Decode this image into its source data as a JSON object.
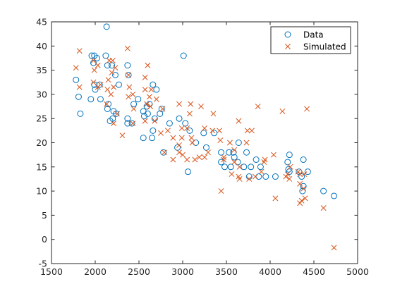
{
  "chart_data": {
    "type": "scatter",
    "title": "",
    "xlabel": "",
    "ylabel": "",
    "xlim": [
      1500,
      5000
    ],
    "ylim": [
      -5,
      45
    ],
    "xticks": [
      1500,
      2000,
      2500,
      3000,
      3500,
      4000,
      4500,
      5000
    ],
    "yticks": [
      -5,
      0,
      5,
      10,
      15,
      20,
      25,
      30,
      35,
      40,
      45
    ],
    "grid": false,
    "legend_position": "top-right",
    "series": [
      {
        "name": "Data",
        "marker": "circle",
        "color": "#0072BD",
        "points": [
          [
            2130,
            44
          ],
          [
            1960,
            38
          ],
          [
            1990,
            38
          ],
          [
            2020,
            37.5
          ],
          [
            2120,
            38
          ],
          [
            3010,
            38
          ],
          [
            1980,
            36.5
          ],
          [
            2140,
            36
          ],
          [
            2190,
            36
          ],
          [
            2370,
            36
          ],
          [
            2050,
            32
          ],
          [
            1990,
            32
          ],
          [
            1780,
            33
          ],
          [
            2000,
            31
          ],
          [
            2380,
            34
          ],
          [
            2230,
            34
          ],
          [
            2660,
            32
          ],
          [
            2700,
            31
          ],
          [
            1810,
            29.5
          ],
          [
            1950,
            29
          ],
          [
            2060,
            29
          ],
          [
            2270,
            32
          ],
          [
            2490,
            29
          ],
          [
            2440,
            28
          ],
          [
            2150,
            28
          ],
          [
            2620,
            28
          ],
          [
            2550,
            26.5
          ],
          [
            2590,
            27.5
          ],
          [
            2140,
            27
          ],
          [
            2210,
            26.5
          ],
          [
            2240,
            26
          ],
          [
            2760,
            27
          ],
          [
            2740,
            26
          ],
          [
            1830,
            26
          ],
          [
            2200,
            25
          ],
          [
            2370,
            25
          ],
          [
            2560,
            25.5
          ],
          [
            2600,
            26
          ],
          [
            2960,
            25
          ],
          [
            2680,
            25
          ],
          [
            2420,
            24
          ],
          [
            2170,
            24.5
          ],
          [
            3030,
            24
          ],
          [
            2850,
            24
          ],
          [
            2370,
            24
          ],
          [
            3360,
            22
          ],
          [
            2660,
            22.5
          ],
          [
            3080,
            22.5
          ],
          [
            3150,
            20
          ],
          [
            3240,
            22
          ],
          [
            3270,
            19
          ],
          [
            2550,
            21
          ],
          [
            2650,
            21
          ],
          [
            2940,
            19
          ],
          [
            2780,
            18
          ],
          [
            3440,
            18
          ],
          [
            3530,
            18
          ],
          [
            3580,
            18
          ],
          [
            3640,
            20
          ],
          [
            3730,
            18
          ],
          [
            3590,
            17
          ],
          [
            3630,
            16
          ],
          [
            3440,
            16
          ],
          [
            3060,
            14
          ],
          [
            3480,
            15
          ],
          [
            3550,
            15
          ],
          [
            3700,
            15
          ],
          [
            3780,
            15
          ],
          [
            3840,
            16.5
          ],
          [
            3890,
            15
          ],
          [
            4200,
            16
          ],
          [
            4220,
            17.5
          ],
          [
            4380,
            16.5
          ],
          [
            4210,
            14.5
          ],
          [
            4330,
            14
          ],
          [
            4430,
            14
          ],
          [
            3760,
            13
          ],
          [
            3870,
            13
          ],
          [
            3950,
            13
          ],
          [
            4060,
            13
          ],
          [
            4360,
            13
          ],
          [
            4380,
            11
          ],
          [
            4370,
            10
          ],
          [
            4610,
            10
          ],
          [
            4730,
            9
          ],
          [
            4220,
            14
          ]
        ]
      },
      {
        "name": "Simulated",
        "marker": "cross",
        "color": "#D95319",
        "points": [
          [
            1820,
            39
          ],
          [
            2370,
            39.5
          ],
          [
            1980,
            37
          ],
          [
            2030,
            36
          ],
          [
            2160,
            37
          ],
          [
            2200,
            37
          ],
          [
            2600,
            36
          ],
          [
            1780,
            35.5
          ],
          [
            1990,
            35
          ],
          [
            2190,
            34.5
          ],
          [
            2380,
            34
          ],
          [
            2150,
            33
          ],
          [
            2570,
            33.5
          ],
          [
            2230,
            35.5
          ],
          [
            1980,
            32.5
          ],
          [
            2030,
            31.5
          ],
          [
            1820,
            31.5
          ],
          [
            2060,
            32
          ],
          [
            2140,
            31
          ],
          [
            2180,
            30
          ],
          [
            2210,
            31.5
          ],
          [
            2390,
            31.5
          ],
          [
            2570,
            31
          ],
          [
            2640,
            31
          ],
          [
            2430,
            30
          ],
          [
            2380,
            29.5
          ],
          [
            2620,
            29.5
          ],
          [
            2700,
            29
          ],
          [
            2590,
            28
          ],
          [
            2130,
            28
          ],
          [
            2440,
            27
          ],
          [
            2630,
            27.5
          ],
          [
            2770,
            27
          ],
          [
            2960,
            28
          ],
          [
            3090,
            28
          ],
          [
            3210,
            27.5
          ],
          [
            3350,
            26
          ],
          [
            3080,
            26
          ],
          [
            2250,
            26
          ],
          [
            2210,
            24
          ],
          [
            2430,
            24
          ],
          [
            2570,
            24.5
          ],
          [
            2680,
            24.5
          ],
          [
            2990,
            23
          ],
          [
            3050,
            23
          ],
          [
            2830,
            22.5
          ],
          [
            2990,
            21
          ],
          [
            3100,
            21
          ],
          [
            3250,
            23
          ],
          [
            3340,
            22.5
          ],
          [
            3420,
            22.5
          ],
          [
            2750,
            22
          ],
          [
            2890,
            21
          ],
          [
            2310,
            21.5
          ],
          [
            3430,
            20.5
          ],
          [
            3540,
            20
          ],
          [
            3470,
            17
          ],
          [
            3590,
            18.5
          ],
          [
            3640,
            24.5
          ],
          [
            3740,
            22.5
          ],
          [
            3790,
            22.5
          ],
          [
            3730,
            20
          ],
          [
            3860,
            27.5
          ],
          [
            4140,
            26.5
          ],
          [
            4420,
            27
          ],
          [
            2960,
            19.5
          ],
          [
            3110,
            20
          ],
          [
            3190,
            17
          ],
          [
            3290,
            18
          ],
          [
            2790,
            18
          ],
          [
            2960,
            18
          ],
          [
            2890,
            16.5
          ],
          [
            3000,
            17.5
          ],
          [
            3050,
            16.5
          ],
          [
            3140,
            16.5
          ],
          [
            3250,
            17
          ],
          [
            3470,
            16.5
          ],
          [
            3590,
            16
          ],
          [
            3650,
            15
          ],
          [
            3930,
            16
          ],
          [
            3940,
            16.5
          ],
          [
            4040,
            17.5
          ],
          [
            4180,
            13
          ],
          [
            4340,
            13.5
          ],
          [
            3560,
            13.5
          ],
          [
            3640,
            13
          ],
          [
            3830,
            13
          ],
          [
            3900,
            14
          ],
          [
            4230,
            15
          ],
          [
            4320,
            14
          ],
          [
            4390,
            13.5
          ],
          [
            3650,
            12.5
          ],
          [
            3760,
            12.5
          ],
          [
            4200,
            13.5
          ],
          [
            4220,
            12.5
          ],
          [
            4340,
            11.5
          ],
          [
            4380,
            10.5
          ],
          [
            4400,
            8.5
          ],
          [
            4360,
            8
          ],
          [
            4340,
            7.5
          ],
          [
            3440,
            10
          ],
          [
            4060,
            8.5
          ],
          [
            4610,
            6.5
          ],
          [
            4730,
            -1.7
          ]
        ]
      }
    ]
  }
}
